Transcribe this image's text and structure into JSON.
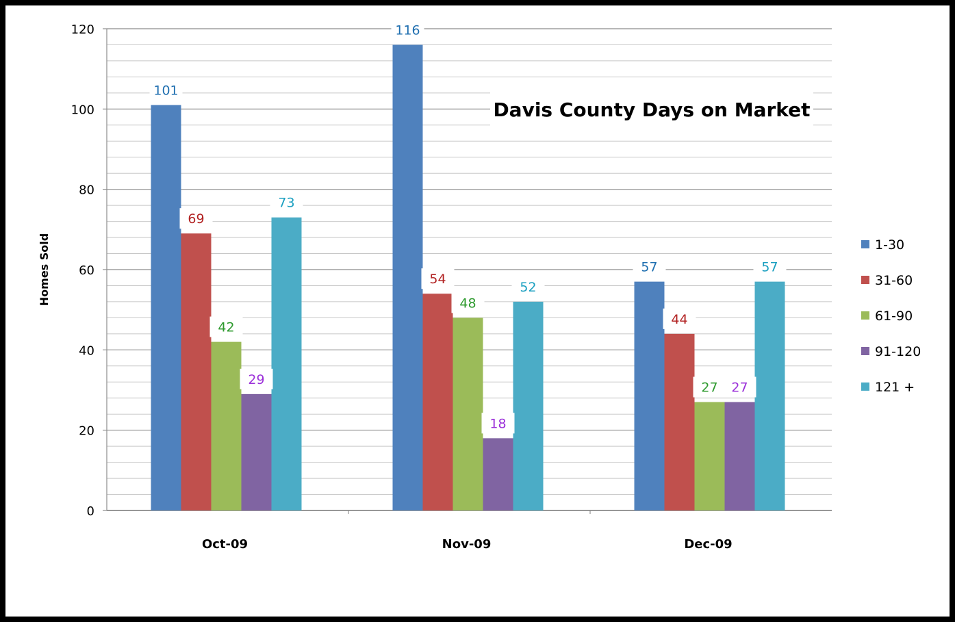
{
  "chart_data": {
    "type": "bar",
    "title": "Davis County Days on Market",
    "xlabel": "",
    "ylabel": "Homes Sold",
    "categories": [
      "Oct-09",
      "Nov-09",
      "Dec-09"
    ],
    "ylim": [
      0,
      120
    ],
    "yticks": [
      0,
      20,
      40,
      60,
      80,
      100,
      120
    ],
    "grid": true,
    "legend_position": "right",
    "series": [
      {
        "name": "1-30",
        "color": "#4f81bd",
        "label_color": "#1f6fb0",
        "values": [
          101,
          116,
          57
        ]
      },
      {
        "name": "31-60",
        "color": "#c0504d",
        "label_color": "#b22222",
        "values": [
          69,
          54,
          44
        ]
      },
      {
        "name": "61-90",
        "color": "#9bbb59",
        "label_color": "#2e9a2e",
        "values": [
          42,
          48,
          27
        ]
      },
      {
        "name": "91-120",
        "color": "#8064a2",
        "label_color": "#9b30d9",
        "values": [
          29,
          18,
          27
        ]
      },
      {
        "name": "121 +",
        "color": "#4bacc6",
        "label_color": "#1a9fc0",
        "values": [
          73,
          52,
          57
        ]
      }
    ]
  }
}
